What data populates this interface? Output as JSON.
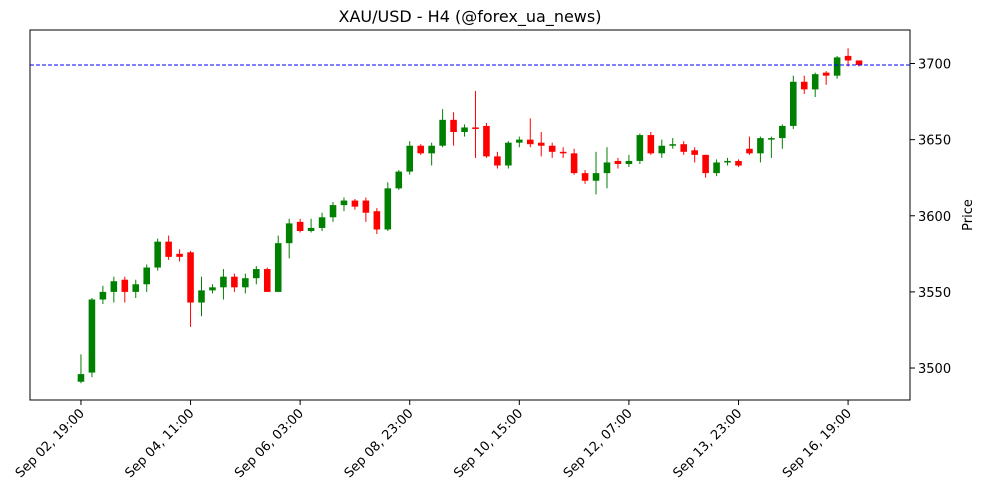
{
  "chart_data": {
    "type": "candlestick",
    "title": "XAU/USD - H4 (@forex_ua_news)",
    "y_label": "Price",
    "categories": [
      "Sep 02, 19:00",
      null,
      null,
      null,
      null,
      null,
      null,
      null,
      null,
      null,
      "Sep 04, 11:00",
      null,
      null,
      null,
      null,
      null,
      null,
      null,
      null,
      null,
      "Sep 06, 03:00",
      null,
      null,
      null,
      null,
      null,
      null,
      null,
      null,
      null,
      "Sep 08, 23:00",
      null,
      null,
      null,
      null,
      null,
      null,
      null,
      null,
      null,
      "Sep 10, 15:00",
      null,
      null,
      null,
      null,
      null,
      null,
      null,
      null,
      null,
      "Sep 12, 07:00",
      null,
      null,
      null,
      null,
      null,
      null,
      null,
      null,
      null,
      "Sep 13, 23:00",
      null,
      null,
      null,
      null,
      null,
      null,
      null,
      null,
      null,
      "Sep 16, 19:00",
      null
    ],
    "open": [
      3491,
      3497,
      3545,
      3550,
      3558,
      3550,
      3555,
      3566,
      3583,
      3575,
      3576,
      3543,
      3551,
      3553,
      3560,
      3553,
      3559,
      3565,
      3550,
      3582,
      3596,
      3590,
      3592,
      3599,
      3607,
      3610,
      3610,
      3603,
      3591,
      3618,
      3629,
      3646,
      3641,
      3646,
      3663,
      3655,
      3658,
      3659,
      3639,
      3633,
      3648,
      3650,
      3648,
      3646,
      3642,
      3641,
      3628,
      3623,
      3628,
      3636,
      3634,
      3636,
      3653,
      3641,
      3646,
      3647,
      3643,
      3640,
      3628,
      3635,
      3636,
      3644,
      3641,
      3650,
      3651,
      3659,
      3688,
      3683,
      3694,
      3692,
      3705,
      3702
    ],
    "high": [
      3509,
      3546,
      3554,
      3560,
      3560,
      3558,
      3568,
      3585,
      3587,
      3578,
      3577,
      3560,
      3555,
      3565,
      3562,
      3562,
      3567,
      3566,
      3587,
      3598,
      3598,
      3598,
      3602,
      3609,
      3612,
      3611,
      3612,
      3605,
      3622,
      3630,
      3649,
      3647,
      3648,
      3670,
      3668,
      3660,
      3682,
      3661,
      3642,
      3649,
      3652,
      3664,
      3655,
      3648,
      3645,
      3644,
      3630,
      3642,
      3645,
      3638,
      3640,
      3654,
      3655,
      3650,
      3651,
      3649,
      3645,
      3640,
      3637,
      3638,
      3637,
      3652,
      3652,
      3652,
      3660,
      3692,
      3692,
      3694,
      3695,
      3705,
      3710,
      3702
    ],
    "low": [
      3490,
      3494,
      3542,
      3543,
      3543,
      3546,
      3550,
      3564,
      3571,
      3570,
      3527,
      3534,
      3549,
      3545,
      3550,
      3549,
      3555,
      3550,
      3550,
      3572,
      3589,
      3589,
      3590,
      3596,
      3603,
      3604,
      3596,
      3588,
      3590,
      3617,
      3627,
      3640,
      3633,
      3645,
      3646,
      3652,
      3638,
      3638,
      3631,
      3631,
      3645,
      3645,
      3639,
      3638,
      3638,
      3627,
      3621,
      3614,
      3618,
      3631,
      3632,
      3634,
      3640,
      3638,
      3644,
      3640,
      3635,
      3625,
      3626,
      3633,
      3632,
      3640,
      3635,
      3638,
      3644,
      3657,
      3680,
      3678,
      3686,
      3690,
      3698,
      3698
    ],
    "close": [
      3496,
      3545,
      3550,
      3557,
      3550,
      3555,
      3566,
      3583,
      3573,
      3573,
      3543,
      3551,
      3553,
      3560,
      3553,
      3559,
      3565,
      3550,
      3582,
      3595,
      3590,
      3592,
      3599,
      3607,
      3610,
      3606,
      3602,
      3591,
      3618,
      3629,
      3646,
      3641,
      3646,
      3663,
      3655,
      3658,
      3657,
      3639,
      3633,
      3648,
      3650,
      3647,
      3646,
      3642,
      3641,
      3628,
      3623,
      3628,
      3635,
      3634,
      3636,
      3653,
      3641,
      3646,
      3647,
      3642,
      3640,
      3628,
      3635,
      3636,
      3633,
      3641,
      3651,
      3651,
      3659,
      3688,
      3683,
      3693,
      3692,
      3704,
      3702,
      3699
    ],
    "up_color": "#008000",
    "down_color": "#ff0000",
    "hline": {
      "value": 3699,
      "color": "#0000ff"
    },
    "ylim": [
      3479,
      3722
    ],
    "yticks": [
      3500,
      3550,
      3600,
      3650,
      3700
    ],
    "grid": false
  }
}
